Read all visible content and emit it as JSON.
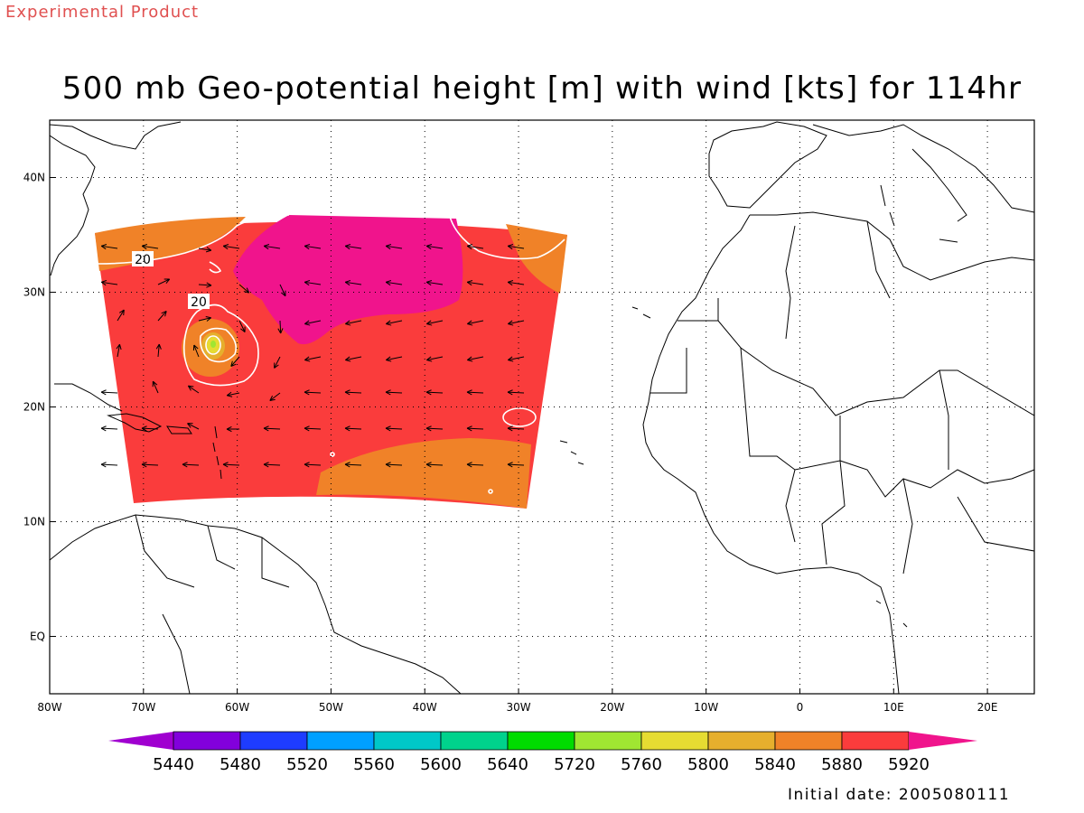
{
  "header": {
    "product_label": "Experimental Product",
    "title": "500 mb Geo-potential height [m] with wind [kts] for 114hr"
  },
  "footer": {
    "initial_date": "Initial date: 2005080111"
  },
  "map": {
    "lon_range": [
      -80,
      25
    ],
    "lat_range": [
      -5,
      45
    ],
    "lon_ticks": [
      {
        "value": -80,
        "label": "80W"
      },
      {
        "value": -70,
        "label": "70W"
      },
      {
        "value": -60,
        "label": "60W"
      },
      {
        "value": -50,
        "label": "50W"
      },
      {
        "value": -40,
        "label": "40W"
      },
      {
        "value": -30,
        "label": "30W"
      },
      {
        "value": -20,
        "label": "20W"
      },
      {
        "value": -10,
        "label": "10W"
      },
      {
        "value": 0,
        "label": "0"
      },
      {
        "value": 10,
        "label": "10E"
      },
      {
        "value": 20,
        "label": "20E"
      }
    ],
    "lat_ticks": [
      {
        "value": 40,
        "label": "40N"
      },
      {
        "value": 30,
        "label": "30N"
      },
      {
        "value": 20,
        "label": "20N"
      },
      {
        "value": 10,
        "label": "10N"
      },
      {
        "value": 0,
        "label": "EQ"
      }
    ],
    "grid": "dotted",
    "wind_contour_labels": [
      {
        "text": "20",
        "lon": -70,
        "lat": 32.8
      },
      {
        "text": "20",
        "lon": -64,
        "lat": 29.1
      }
    ]
  },
  "colorbar": {
    "levels": [
      "5440",
      "5480",
      "5520",
      "5560",
      "5600",
      "5640",
      "5720",
      "5760",
      "5800",
      "5840",
      "5880",
      "5920"
    ],
    "colors": [
      "#a000d0",
      "#8200dc",
      "#1e3cff",
      "#00a0ff",
      "#00c8c8",
      "#00d28c",
      "#00dc00",
      "#a0e632",
      "#e6dc32",
      "#e6af2d",
      "#f08228",
      "#fa3c3c",
      "#f0148c"
    ]
  },
  "field_colors": {
    "band_5880_5920": "#fa3c3c",
    "band_5840_5880": "#f08228",
    "band_above_5920": "#f0148c",
    "band_5800_5840": "#e6af2d",
    "band_5760_5800": "#e6dc32",
    "band_5720_5760": "#a0e632",
    "wind_contour": "#ffffff",
    "coastline": "#000000"
  }
}
